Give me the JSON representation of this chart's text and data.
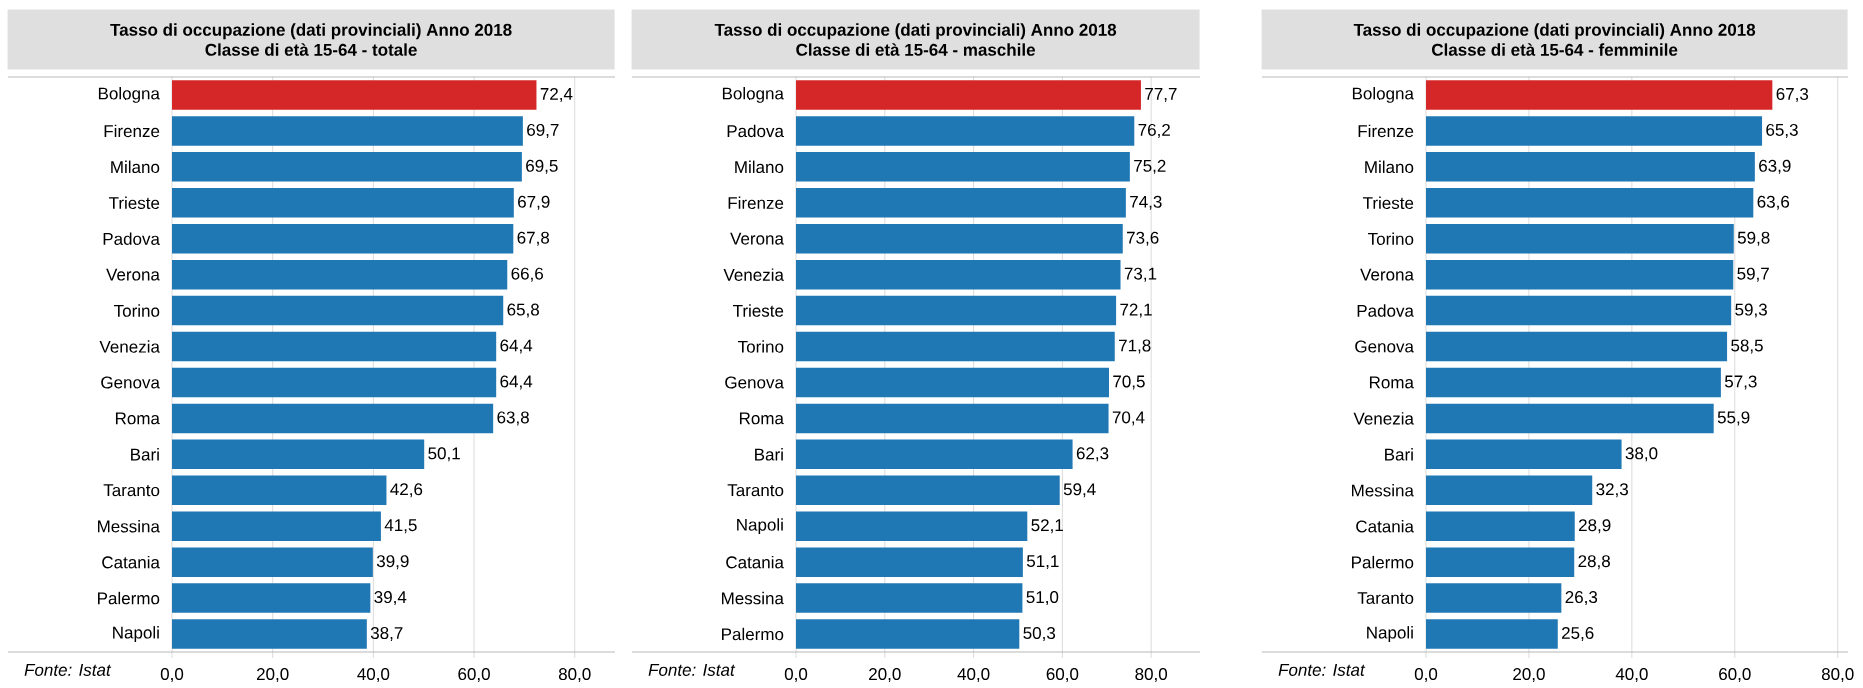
{
  "chart_data": [
    {
      "type": "bar",
      "orientation": "horizontal",
      "title": "Tasso di occupazione (dati provinciali) Anno 2018",
      "subtitle": "Classe di età 15-64 - totale",
      "categories": [
        "Bologna",
        "Firenze",
        "Milano",
        "Trieste",
        "Padova",
        "Verona",
        "Torino",
        "Venezia",
        "Genova",
        "Roma",
        "Bari",
        "Taranto",
        "Messina",
        "Catania",
        "Palermo",
        "Napoli"
      ],
      "values": [
        72.4,
        69.7,
        69.5,
        67.9,
        67.8,
        66.6,
        65.8,
        64.4,
        64.4,
        63.8,
        50.1,
        42.6,
        41.5,
        39.9,
        39.4,
        38.7
      ],
      "value_labels": [
        "72,4",
        "69,7",
        "69,5",
        "67,9",
        "67,8",
        "66,6",
        "65,8",
        "64,4",
        "64,4",
        "63,8",
        "50,1",
        "42,6",
        "41,5",
        "39,9",
        "39,4",
        "38,7"
      ],
      "colors": [
        "#d62728",
        "#1f77b4",
        "#1f77b4",
        "#1f77b4",
        "#1f77b4",
        "#1f77b4",
        "#1f77b4",
        "#1f77b4",
        "#1f77b4",
        "#1f77b4",
        "#1f77b4",
        "#1f77b4",
        "#1f77b4",
        "#1f77b4",
        "#1f77b4",
        "#1f77b4"
      ],
      "xlim": [
        0,
        88
      ],
      "xticks": [
        {
          "value": 0,
          "label": "0,0"
        },
        {
          "value": 20,
          "label": "20,0"
        },
        {
          "value": 40,
          "label": "40,0"
        },
        {
          "value": 60,
          "label": "60,0"
        },
        {
          "value": 80,
          "label": "80,0"
        }
      ],
      "grid": "x",
      "annotations": [
        "Fonte: Istat"
      ]
    },
    {
      "type": "bar",
      "orientation": "horizontal",
      "title": "Tasso di occupazione (dati provinciali) Anno 2018",
      "subtitle": "Classe di età 15-64 - maschile",
      "categories": [
        "Bologna",
        "Padova",
        "Milano",
        "Firenze",
        "Verona",
        "Venezia",
        "Trieste",
        "Torino",
        "Genova",
        "Roma",
        "Bari",
        "Taranto",
        "Napoli",
        "Catania",
        "Messina",
        "Palermo"
      ],
      "values": [
        77.7,
        76.2,
        75.2,
        74.3,
        73.6,
        73.1,
        72.1,
        71.8,
        70.5,
        70.4,
        62.3,
        59.4,
        52.1,
        51.1,
        51.0,
        50.3
      ],
      "value_labels": [
        "77,7",
        "76,2",
        "75,2",
        "74,3",
        "73,6",
        "73,1",
        "72,1",
        "71,8",
        "70,5",
        "70,4",
        "62,3",
        "59,4",
        "52,1",
        "51,1",
        "51,0",
        "50,3"
      ],
      "colors": [
        "#d62728",
        "#1f77b4",
        "#1f77b4",
        "#1f77b4",
        "#1f77b4",
        "#1f77b4",
        "#1f77b4",
        "#1f77b4",
        "#1f77b4",
        "#1f77b4",
        "#1f77b4",
        "#1f77b4",
        "#1f77b4",
        "#1f77b4",
        "#1f77b4",
        "#1f77b4"
      ],
      "xlim": [
        0,
        91
      ],
      "xticks": [
        {
          "value": 0,
          "label": "0,0"
        },
        {
          "value": 20,
          "label": "20,0"
        },
        {
          "value": 40,
          "label": "40,0"
        },
        {
          "value": 60,
          "label": "60,0"
        },
        {
          "value": 80,
          "label": "80,0"
        }
      ],
      "grid": "x",
      "annotations": [
        "Fonte: Istat"
      ]
    },
    {
      "type": "bar",
      "orientation": "horizontal",
      "title": "Tasso di occupazione (dati provinciali) Anno 2018",
      "subtitle": "Classe di età 15-64 - femminile",
      "categories": [
        "Bologna",
        "Firenze",
        "Milano",
        "Trieste",
        "Torino",
        "Verona",
        "Padova",
        "Genova",
        "Roma",
        "Venezia",
        "Bari",
        "Messina",
        "Catania",
        "Palermo",
        "Taranto",
        "Napoli"
      ],
      "values": [
        67.3,
        65.3,
        63.9,
        63.6,
        59.8,
        59.7,
        59.3,
        58.5,
        57.3,
        55.9,
        38.0,
        32.3,
        28.9,
        28.8,
        26.3,
        25.6
      ],
      "value_labels": [
        "67,3",
        "65,3",
        "63,9",
        "63,6",
        "59,8",
        "59,7",
        "59,3",
        "58,5",
        "57,3",
        "55,9",
        "38,0",
        "32,3",
        "28,9",
        "28,8",
        "26,3",
        "25,6"
      ],
      "colors": [
        "#d62728",
        "#1f77b4",
        "#1f77b4",
        "#1f77b4",
        "#1f77b4",
        "#1f77b4",
        "#1f77b4",
        "#1f77b4",
        "#1f77b4",
        "#1f77b4",
        "#1f77b4",
        "#1f77b4",
        "#1f77b4",
        "#1f77b4",
        "#1f77b4",
        "#1f77b4"
      ],
      "xlim": [
        0,
        82
      ],
      "xticks": [
        {
          "value": 0,
          "label": "0,0"
        },
        {
          "value": 20,
          "label": "20,0"
        },
        {
          "value": 40,
          "label": "40,0"
        },
        {
          "value": 60,
          "label": "60,0"
        },
        {
          "value": 80,
          "label": "80,0"
        }
      ],
      "grid": "x",
      "annotations": [
        "Fonte: Istat"
      ]
    }
  ]
}
